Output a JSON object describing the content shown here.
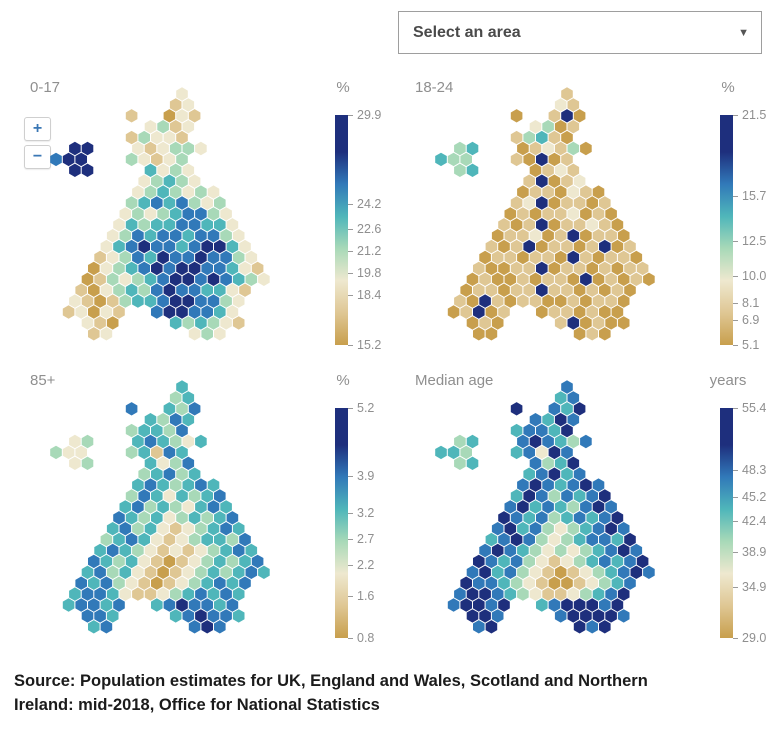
{
  "controls": {
    "area_select_label": "Select an area",
    "caret": "▼",
    "zoom_in": "+",
    "zoom_out": "−"
  },
  "source": {
    "text": "Source: Population estimates for UK, England and Wales, Scotland and Northern Ireland: mid-2018, Office for National Statistics"
  },
  "palette": [
    "#c89f4d",
    "#dfc794",
    "#eee8cf",
    "#a8d9b8",
    "#4fb6ba",
    "#3179b9",
    "#1e2f7d"
  ],
  "chart_data": [
    {
      "type": "heatmap",
      "title": "0-17",
      "unit": "%",
      "min": 15.2,
      "max": 29.9,
      "legend_ticks": [
        29.9,
        24.2,
        22.6,
        21.2,
        19.8,
        18.4,
        15.2
      ],
      "grid": [
        "..........2......",
        ".........12......",
        "......1..021.....",
        ".......2312......",
        "......13221......",
        ".66...212332.....",
        "566...32123......",
        ".66....4232......",
        ".......23432.....",
        "......2343232....",
        "......34545323...",
        ".....232345532...",
        ".....2434455442..",
        "....23545545532..",
        "....245655456642.",
        "...1235465565532.",
        "...02345656655421",
        "..013234566565432",
        "..10234356554421.",
        ".21013445665532..",
        ".12021..5665542..",
        "..210....434321..",
        "...12......232..."
      ]
    },
    {
      "type": "heatmap",
      "title": "18-24",
      "unit": "%",
      "min": 5.1,
      "max": 21.5,
      "legend_ticks": [
        21.5,
        15.7,
        12.5,
        10.0,
        8.1,
        6.9,
        5.1
      ],
      "grid": [
        "..........1......",
        ".........21......",
        "......0..160.....",
        ".......2301......",
        "......13410......",
        ".34...012130.....",
        "433...10601......",
        ".34....0121......",
        ".......16012.....",
        "......0110210....",
        "......12601101...",
        ".....010112010...",
        ".....1016011210..",
        "....01120160110..",
        "....101601101601.",
        "...0110110610110.",
        "...10011601101011",
        "..010010110601010",
        "..01101161101010.",
        ".10610110010110..",
        ".01601..0110100..",
        "..010....160100..",
        "...00......010..."
      ]
    },
    {
      "type": "heatmap",
      "title": "85+",
      "unit": "%",
      "min": 0.8,
      "max": 5.2,
      "legend_ticks": [
        5.2,
        3.9,
        3.2,
        2.7,
        2.2,
        1.6,
        0.8
      ],
      "grid": [
        "..........4......",
        ".........34......",
        "......5..435.....",
        ".......4354......",
        "......34435......",
        ".23...454324.....",
        "322...34154......",
        ".23....4235......",
        ".......34534.....",
        "......4543454....",
        "......35424345...",
        ".....453432454...",
        ".....5434234345..",
        "....45342123454..",
        "....345421234435.",
        "...4543212123454.",
        "...54342101234345",
        "..453421012343454",
        "..54532101234545.",
        ".45542112345454..",
        ".45545..4565545..",
        "..554....456554..",
        "...45......565..."
      ]
    },
    {
      "type": "heatmap",
      "title": "Median age",
      "unit": "years",
      "min": 29.0,
      "max": 55.4,
      "legend_ticks": [
        55.4,
        48.3,
        45.2,
        42.4,
        38.9,
        34.9,
        29.0
      ],
      "grid": [
        "..........5......",
        ".........45......",
        "......6..546.....",
        ".......5465......",
        "......45546......",
        ".34...565435.....",
        "443...45265......",
        ".34....5346......",
        ".......45645.....",
        "......5654565....",
        "......46535456...",
        ".....564543565...",
        ".....6545345456..",
        "....56453234565..",
        "....456532345546.",
        "...5654323234565.",
        "...65453212345456",
        "..564532101234565",
        "..65543210012345.",
        ".56654321123456..",
        ".56656..4566656..",
        "..665....566665..",
        "...56......656..."
      ]
    }
  ]
}
